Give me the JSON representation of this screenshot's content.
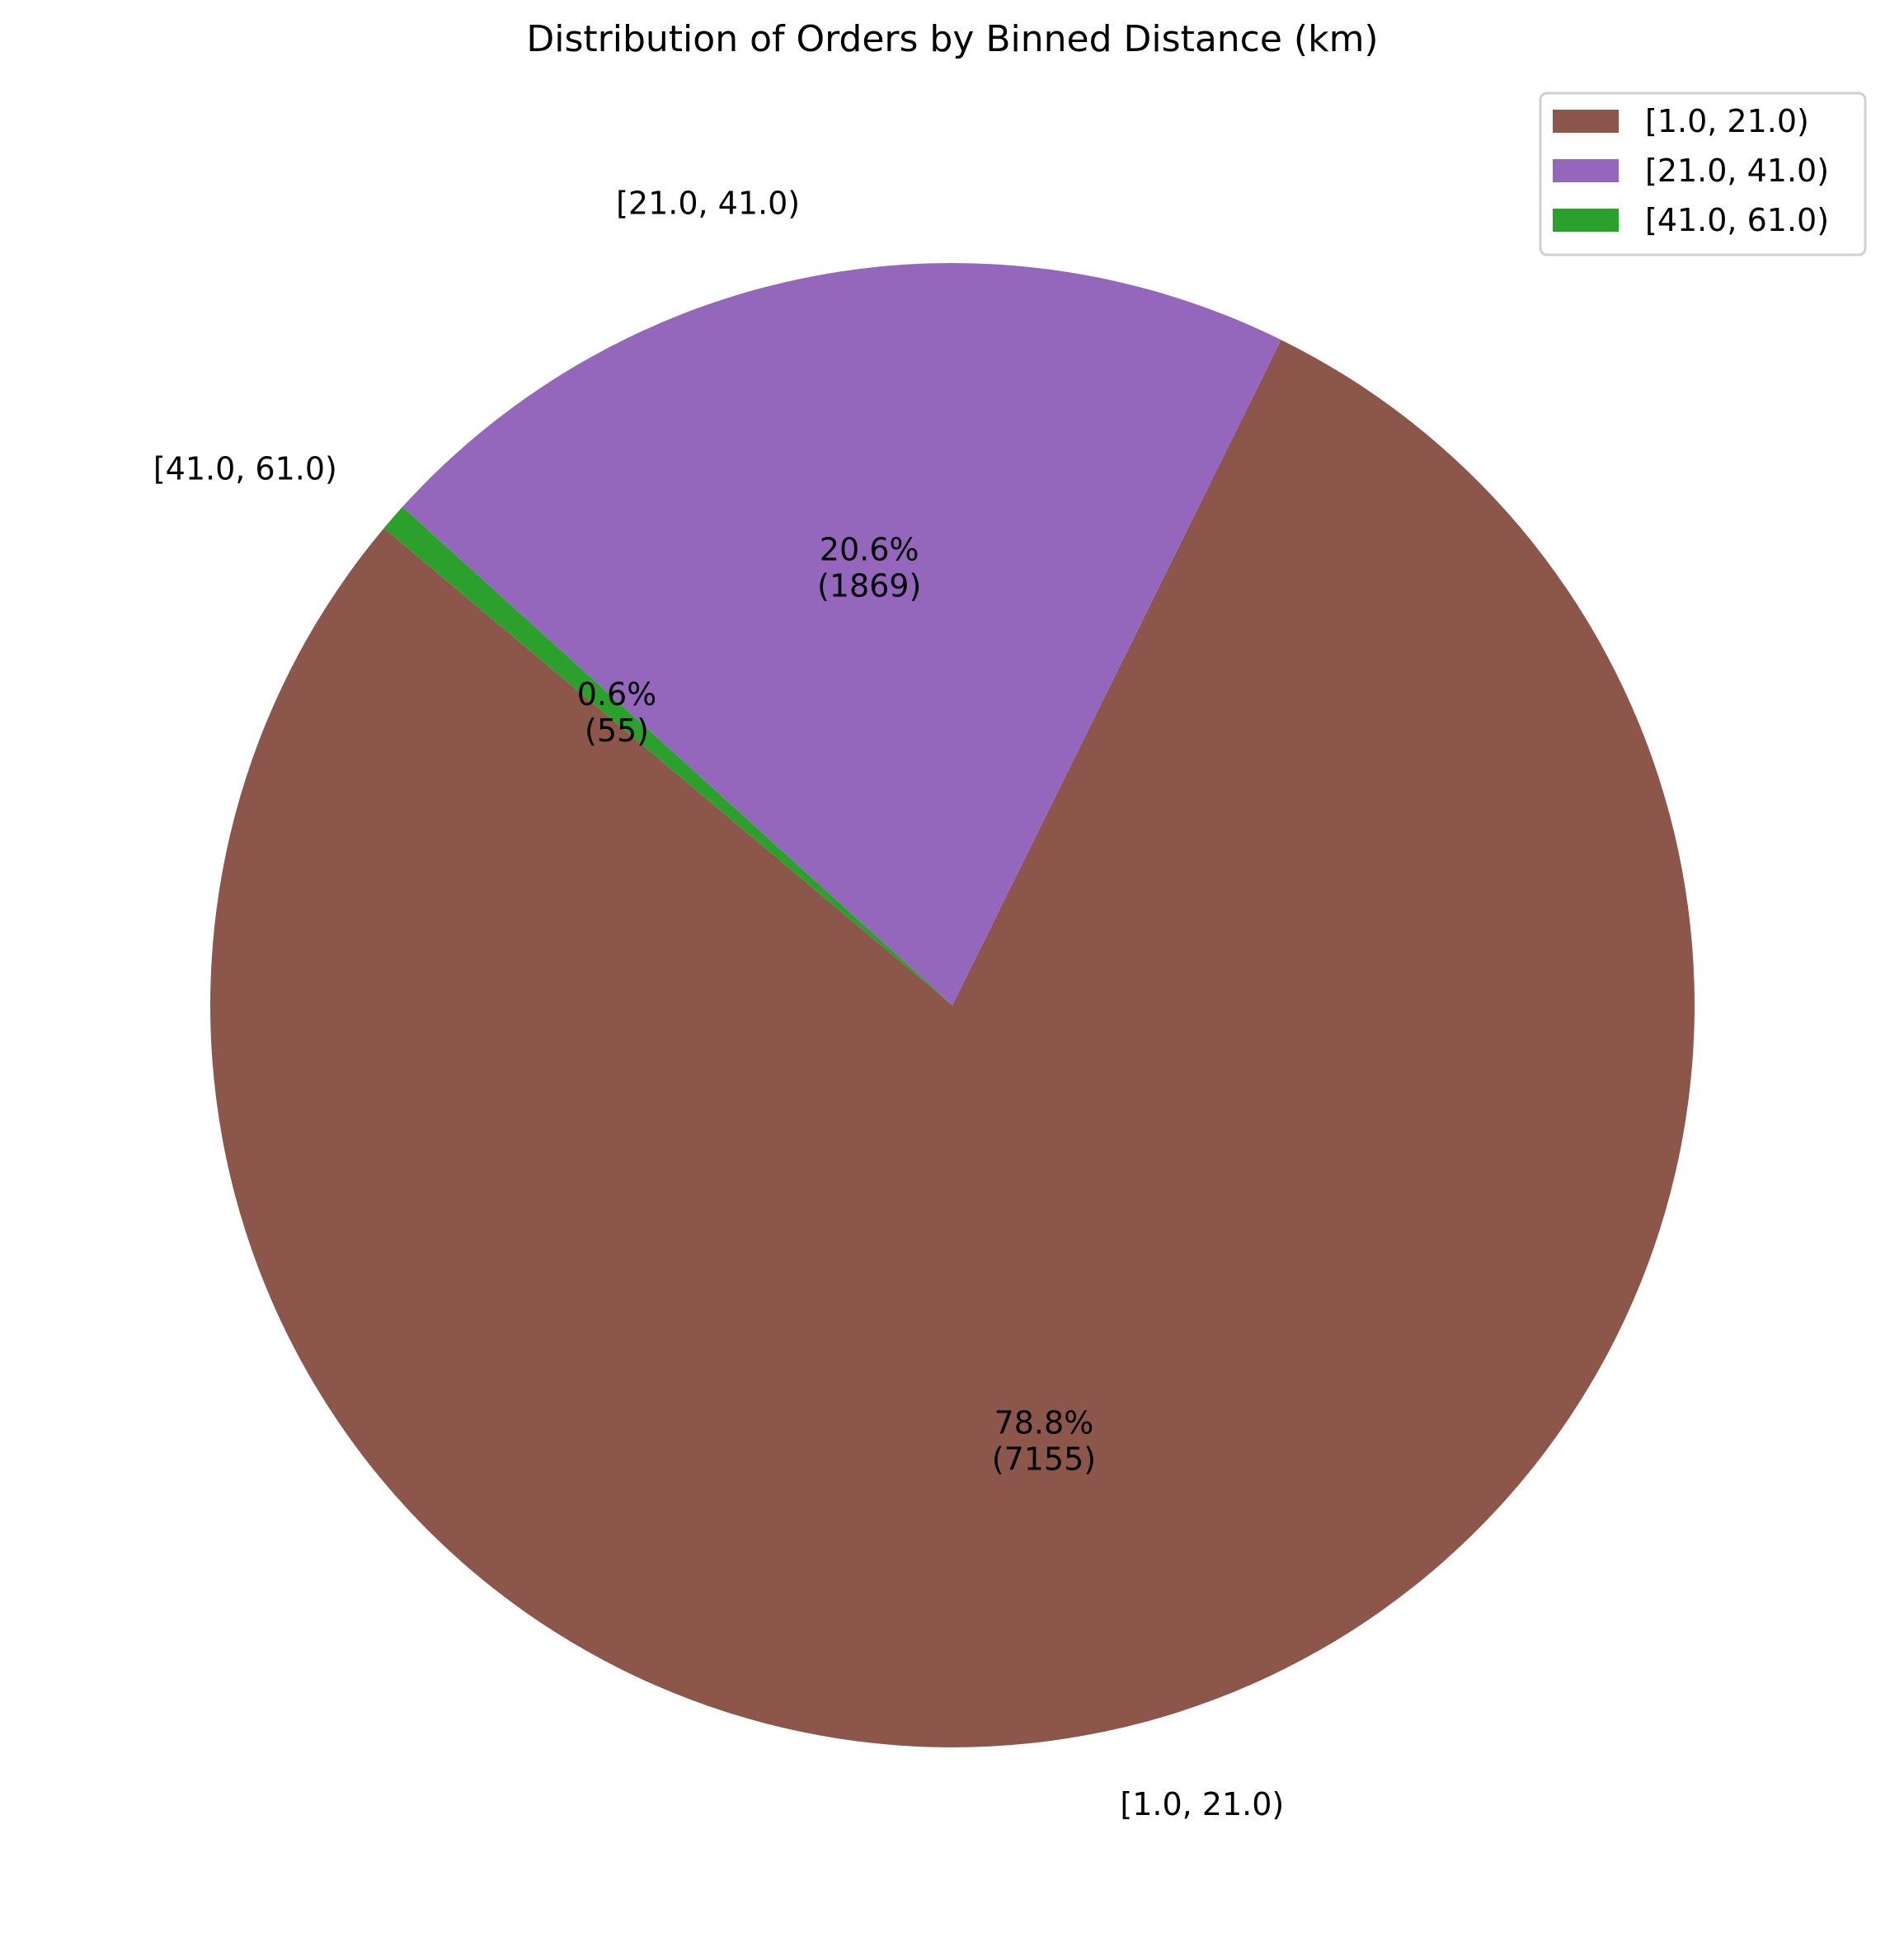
{
  "chart_data": {
    "type": "pie",
    "title": "Distribution of Orders by Binned Distance (km)",
    "start_angle_deg": 140,
    "direction": "counterclockwise",
    "legend_position": "top-right",
    "slices": [
      {
        "label": "[1.0, 21.0)",
        "value": 7155,
        "percent_label": "78.8%",
        "count_label": "(7155)",
        "color": "#8c564b"
      },
      {
        "label": "[21.0, 41.0)",
        "value": 1869,
        "percent_label": "20.6%",
        "count_label": "(1869)",
        "color": "#9467bd"
      },
      {
        "label": "[41.0, 61.0)",
        "value": 55,
        "percent_label": "0.6%",
        "count_label": "(55)",
        "color": "#2ca02c"
      }
    ]
  }
}
